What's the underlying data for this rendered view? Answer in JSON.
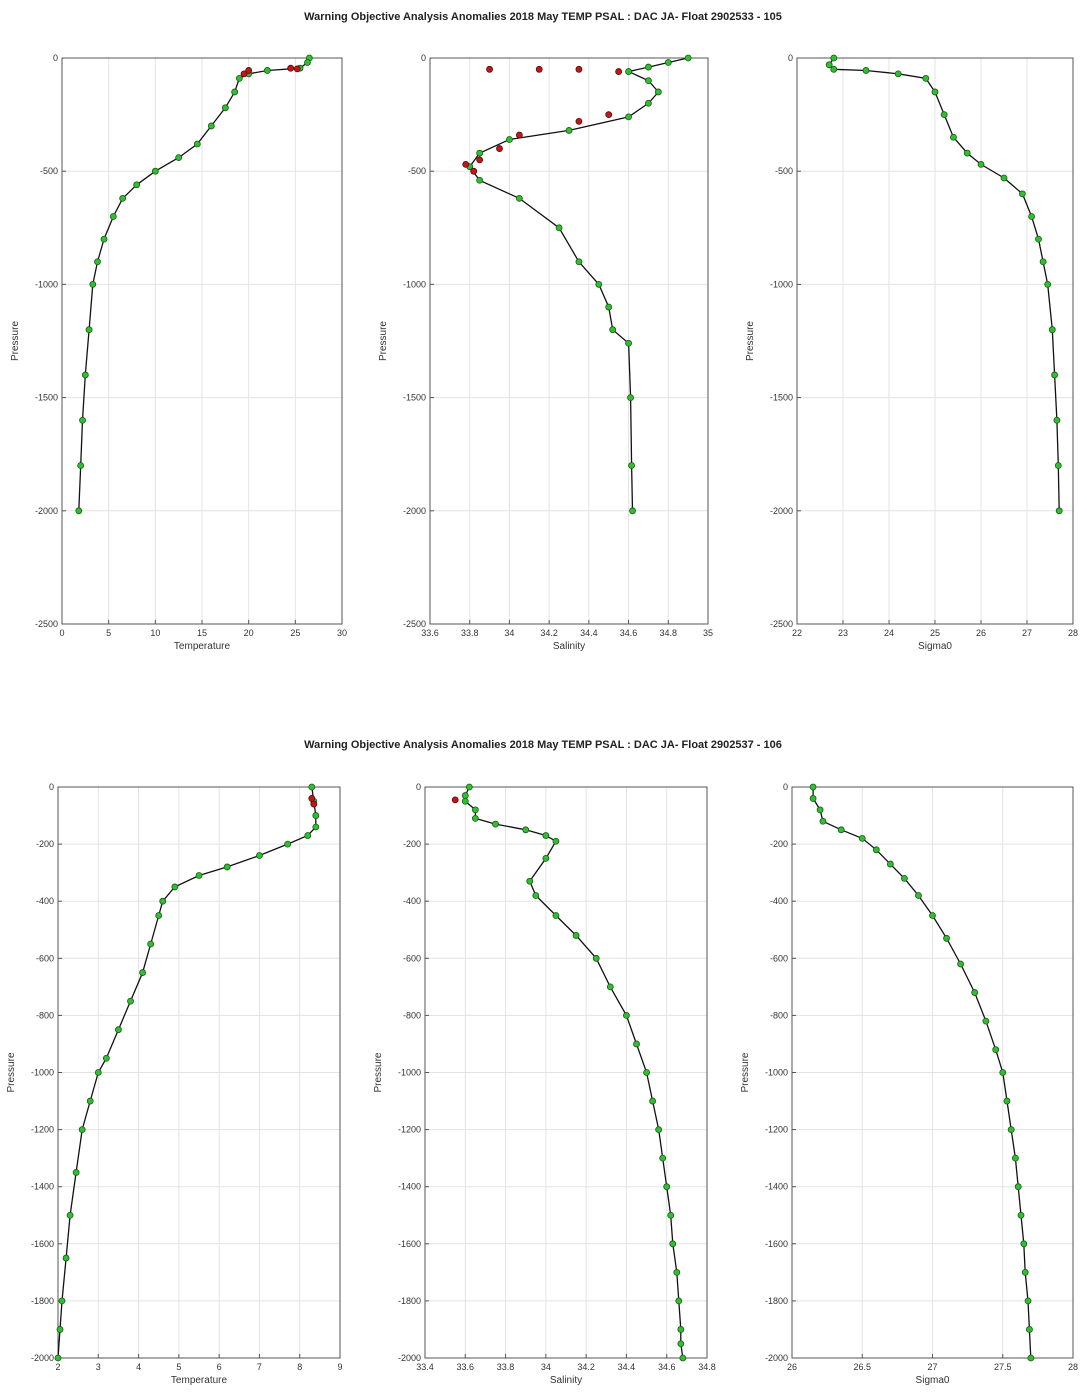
{
  "figures": [
    {
      "title": "Warning Objective Analysis Anomalies 2018 May TEMP PSAL :  DAC JA- Float 2902533 - 105"
    },
    {
      "title": "Warning Objective Analysis Anomalies 2018 May TEMP PSAL :  DAC JA- Float 2902537 - 106"
    }
  ],
  "colors": {
    "good_marker": "#2fbf2f",
    "flagged_marker": "#c01818",
    "profile_line": "#111111"
  },
  "chart_data": [
    {
      "type": "scatter",
      "figure": 0,
      "xlabel": "Temperature",
      "ylabel": "Pressure",
      "xlim": [
        0,
        30
      ],
      "ylim": [
        -2500,
        0
      ],
      "xticks": [
        0,
        5,
        10,
        15,
        20,
        25,
        30
      ],
      "yticks": [
        0,
        -500,
        -1000,
        -1500,
        -2000,
        -2500
      ],
      "grid": true,
      "series": [
        {
          "points": [
            [
              26.5,
              0
            ],
            [
              26.3,
              -20
            ],
            [
              25.5,
              -45
            ],
            [
              22,
              -55
            ],
            [
              20,
              -70
            ],
            [
              19,
              -90
            ],
            [
              18.5,
              -150
            ],
            [
              17.5,
              -220
            ],
            [
              16,
              -300
            ],
            [
              14.5,
              -380
            ],
            [
              12.5,
              -440
            ],
            [
              10,
              -500
            ],
            [
              8,
              -560
            ],
            [
              6.5,
              -620
            ],
            [
              5.5,
              -700
            ],
            [
              4.5,
              -800
            ],
            [
              3.8,
              -900
            ],
            [
              3.3,
              -1000
            ],
            [
              2.9,
              -1200
            ],
            [
              2.5,
              -1400
            ],
            [
              2.2,
              -1600
            ],
            [
              2.0,
              -1800
            ],
            [
              1.8,
              -2000
            ]
          ]
        },
        {
          "flagged": [
            [
              24.5,
              -45
            ],
            [
              25.2,
              -48
            ],
            [
              20,
              -55
            ],
            [
              19.5,
              -70
            ]
          ]
        }
      ]
    },
    {
      "type": "scatter",
      "figure": 0,
      "xlabel": "Salinity",
      "ylabel": "Pressure",
      "xlim": [
        33.6,
        35
      ],
      "ylim": [
        -2500,
        0
      ],
      "xticks": [
        33.6,
        33.8,
        34,
        34.2,
        34.4,
        34.6,
        34.8,
        35
      ],
      "yticks": [
        0,
        -500,
        -1000,
        -1500,
        -2000,
        -2500
      ],
      "grid": true,
      "series": [
        {
          "points": [
            [
              34.9,
              0
            ],
            [
              34.8,
              -20
            ],
            [
              34.7,
              -40
            ],
            [
              34.6,
              -60
            ],
            [
              34.7,
              -100
            ],
            [
              34.75,
              -150
            ],
            [
              34.7,
              -200
            ],
            [
              34.6,
              -260
            ],
            [
              34.3,
              -320
            ],
            [
              34.0,
              -360
            ],
            [
              33.85,
              -420
            ],
            [
              33.8,
              -480
            ],
            [
              33.85,
              -540
            ],
            [
              34.05,
              -620
            ],
            [
              34.25,
              -750
            ],
            [
              34.35,
              -900
            ],
            [
              34.45,
              -1000
            ],
            [
              34.5,
              -1100
            ],
            [
              34.52,
              -1200
            ],
            [
              34.6,
              -1260
            ],
            [
              34.61,
              -1500
            ],
            [
              34.615,
              -1800
            ],
            [
              34.62,
              -2000
            ]
          ]
        },
        {
          "flagged": [
            [
              33.9,
              -50
            ],
            [
              34.15,
              -50
            ],
            [
              34.35,
              -50
            ],
            [
              34.55,
              -60
            ],
            [
              34.5,
              -250
            ],
            [
              34.35,
              -280
            ],
            [
              34.05,
              -340
            ],
            [
              33.95,
              -400
            ],
            [
              33.85,
              -450
            ],
            [
              33.78,
              -470
            ],
            [
              33.82,
              -500
            ]
          ]
        }
      ]
    },
    {
      "type": "scatter",
      "figure": 0,
      "xlabel": "Sigma0",
      "ylabel": "Pressure",
      "xlim": [
        22,
        28
      ],
      "ylim": [
        -2500,
        0
      ],
      "xticks": [
        22,
        23,
        24,
        25,
        26,
        27,
        28
      ],
      "yticks": [
        0,
        -500,
        -1000,
        -1500,
        -2000,
        -2500
      ],
      "grid": true,
      "series": [
        {
          "points": [
            [
              22.8,
              0
            ],
            [
              22.7,
              -30
            ],
            [
              22.8,
              -50
            ],
            [
              23.5,
              -55
            ],
            [
              24.2,
              -70
            ],
            [
              24.8,
              -90
            ],
            [
              25.0,
              -150
            ],
            [
              25.2,
              -250
            ],
            [
              25.4,
              -350
            ],
            [
              25.7,
              -420
            ],
            [
              26.0,
              -470
            ],
            [
              26.5,
              -530
            ],
            [
              26.9,
              -600
            ],
            [
              27.1,
              -700
            ],
            [
              27.25,
              -800
            ],
            [
              27.35,
              -900
            ],
            [
              27.45,
              -1000
            ],
            [
              27.55,
              -1200
            ],
            [
              27.6,
              -1400
            ],
            [
              27.65,
              -1600
            ],
            [
              27.68,
              -1800
            ],
            [
              27.7,
              -2000
            ]
          ]
        }
      ]
    },
    {
      "type": "scatter",
      "figure": 1,
      "xlabel": "Temperature",
      "ylabel": "Pressure",
      "xlim": [
        2,
        9
      ],
      "ylim": [
        -2000,
        0
      ],
      "xticks": [
        2,
        3,
        4,
        5,
        6,
        7,
        8,
        9
      ],
      "yticks": [
        0,
        -200,
        -400,
        -600,
        -800,
        -1000,
        -1200,
        -1400,
        -1600,
        -1800,
        -2000
      ],
      "grid": true,
      "series": [
        {
          "points": [
            [
              8.3,
              0
            ],
            [
              8.35,
              -50
            ],
            [
              8.4,
              -100
            ],
            [
              8.4,
              -140
            ],
            [
              8.2,
              -170
            ],
            [
              7.7,
              -200
            ],
            [
              7.0,
              -240
            ],
            [
              6.2,
              -280
            ],
            [
              5.5,
              -310
            ],
            [
              4.9,
              -350
            ],
            [
              4.6,
              -400
            ],
            [
              4.5,
              -450
            ],
            [
              4.3,
              -550
            ],
            [
              4.1,
              -650
            ],
            [
              3.8,
              -750
            ],
            [
              3.5,
              -850
            ],
            [
              3.2,
              -950
            ],
            [
              3.0,
              -1000
            ],
            [
              2.8,
              -1100
            ],
            [
              2.6,
              -1200
            ],
            [
              2.45,
              -1350
            ],
            [
              2.3,
              -1500
            ],
            [
              2.2,
              -1650
            ],
            [
              2.1,
              -1800
            ],
            [
              2.05,
              -1900
            ],
            [
              2.0,
              -2000
            ]
          ]
        },
        {
          "flagged": [
            [
              8.3,
              -40
            ],
            [
              8.35,
              -60
            ]
          ]
        }
      ]
    },
    {
      "type": "scatter",
      "figure": 1,
      "xlabel": "Salinity",
      "ylabel": "Pressure",
      "xlim": [
        33.4,
        34.8
      ],
      "ylim": [
        -2000,
        0
      ],
      "xticks": [
        33.4,
        33.6,
        33.8,
        34,
        34.2,
        34.4,
        34.6,
        34.8
      ],
      "yticks": [
        0,
        -200,
        -400,
        -600,
        -800,
        -1000,
        -1200,
        -1400,
        -1600,
        -1800,
        -2000
      ],
      "grid": true,
      "series": [
        {
          "points": [
            [
              33.62,
              0
            ],
            [
              33.6,
              -30
            ],
            [
              33.6,
              -50
            ],
            [
              33.65,
              -80
            ],
            [
              33.65,
              -110
            ],
            [
              33.75,
              -130
            ],
            [
              33.9,
              -150
            ],
            [
              34.0,
              -170
            ],
            [
              34.05,
              -190
            ],
            [
              34.0,
              -250
            ],
            [
              33.92,
              -330
            ],
            [
              33.95,
              -380
            ],
            [
              34.05,
              -450
            ],
            [
              34.15,
              -520
            ],
            [
              34.25,
              -600
            ],
            [
              34.32,
              -700
            ],
            [
              34.4,
              -800
            ],
            [
              34.45,
              -900
            ],
            [
              34.5,
              -1000
            ],
            [
              34.53,
              -1100
            ],
            [
              34.56,
              -1200
            ],
            [
              34.58,
              -1300
            ],
            [
              34.6,
              -1400
            ],
            [
              34.62,
              -1500
            ],
            [
              34.63,
              -1600
            ],
            [
              34.65,
              -1700
            ],
            [
              34.66,
              -1800
            ],
            [
              34.67,
              -1900
            ],
            [
              34.67,
              -1950
            ],
            [
              34.68,
              -2000
            ]
          ]
        },
        {
          "flagged": [
            [
              33.55,
              -45
            ]
          ]
        }
      ]
    },
    {
      "type": "scatter",
      "figure": 1,
      "xlabel": "Sigma0",
      "ylabel": "Pressure",
      "xlim": [
        26,
        28
      ],
      "ylim": [
        -2000,
        0
      ],
      "xticks": [
        26,
        26.5,
        27,
        27.5,
        28
      ],
      "yticks": [
        0,
        -200,
        -400,
        -600,
        -800,
        -1000,
        -1200,
        -1400,
        -1600,
        -1800,
        -2000
      ],
      "grid": true,
      "series": [
        {
          "points": [
            [
              26.15,
              0
            ],
            [
              26.15,
              -40
            ],
            [
              26.2,
              -80
            ],
            [
              26.22,
              -120
            ],
            [
              26.35,
              -150
            ],
            [
              26.5,
              -180
            ],
            [
              26.6,
              -220
            ],
            [
              26.7,
              -270
            ],
            [
              26.8,
              -320
            ],
            [
              26.9,
              -380
            ],
            [
              27.0,
              -450
            ],
            [
              27.1,
              -530
            ],
            [
              27.2,
              -620
            ],
            [
              27.3,
              -720
            ],
            [
              27.38,
              -820
            ],
            [
              27.45,
              -920
            ],
            [
              27.5,
              -1000
            ],
            [
              27.53,
              -1100
            ],
            [
              27.56,
              -1200
            ],
            [
              27.59,
              -1300
            ],
            [
              27.61,
              -1400
            ],
            [
              27.63,
              -1500
            ],
            [
              27.65,
              -1600
            ],
            [
              27.66,
              -1700
            ],
            [
              27.68,
              -1800
            ],
            [
              27.69,
              -1900
            ],
            [
              27.7,
              -2000
            ]
          ]
        }
      ]
    }
  ]
}
